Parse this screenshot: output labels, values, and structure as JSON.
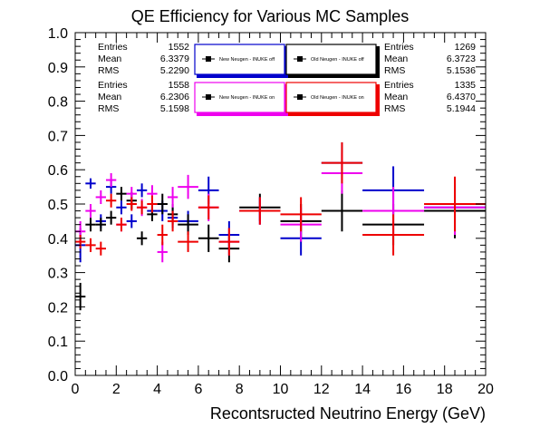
{
  "chart_data": {
    "type": "scatter",
    "title": "QE Efficiency for Various MC Samples",
    "xlabel": "Recontsructed Neutrino Energy (GeV)",
    "ylabel": "",
    "xlim": [
      0,
      20
    ],
    "ylim": [
      0,
      1
    ],
    "x_ticks": [
      "0",
      "2",
      "4",
      "6",
      "8",
      "10",
      "12",
      "14",
      "16",
      "18",
      "20"
    ],
    "y_ticks": [
      "0.0",
      "0.1",
      "0.2",
      "0.3",
      "0.4",
      "0.5",
      "0.6",
      "0.7",
      "0.8",
      "0.9",
      "1.0"
    ],
    "grid": false,
    "stat_boxes": [
      {
        "color": "#0000cc",
        "entries": "1552",
        "mean": "6.3379",
        "rms": "5.2290",
        "legend": "New Neugen - INUKE off"
      },
      {
        "color": "#000000",
        "entries": "1269",
        "mean": "6.3723",
        "rms": "5.1536",
        "legend": "Old Neugen - INUKE off"
      },
      {
        "color": "#ee00ee",
        "entries": "1558",
        "mean": "6.2306",
        "rms": "5.1598",
        "legend": "New Neugen - INUKE on"
      },
      {
        "color": "#ee0000",
        "entries": "1335",
        "mean": "6.4370",
        "rms": "5.1944",
        "legend": "Old Neugen - INUKE on"
      }
    ],
    "stat_labels": {
      "entries": "Entries",
      "mean": "Mean",
      "rms": "RMS"
    },
    "series": [
      {
        "color": "#0000cc",
        "points": [
          {
            "x": 0.25,
            "xerr": 0.25,
            "y": 0.38,
            "yerr": 0.05
          },
          {
            "x": 0.75,
            "xerr": 0.25,
            "y": 0.56,
            "yerr": 0.015
          },
          {
            "x": 1.25,
            "xerr": 0.25,
            "y": 0.45,
            "yerr": 0.02
          },
          {
            "x": 1.75,
            "xerr": 0.25,
            "y": 0.55,
            "yerr": 0.02
          },
          {
            "x": 2.25,
            "xerr": 0.25,
            "y": 0.49,
            "yerr": 0.02
          },
          {
            "x": 2.75,
            "xerr": 0.25,
            "y": 0.45,
            "yerr": 0.02
          },
          {
            "x": 3.25,
            "xerr": 0.25,
            "y": 0.54,
            "yerr": 0.02
          },
          {
            "x": 3.75,
            "xerr": 0.25,
            "y": 0.48,
            "yerr": 0.025
          },
          {
            "x": 4.25,
            "xerr": 0.25,
            "y": 0.48,
            "yerr": 0.03
          },
          {
            "x": 4.75,
            "xerr": 0.25,
            "y": 0.46,
            "yerr": 0.03
          },
          {
            "x": 5.5,
            "xerr": 0.5,
            "y": 0.45,
            "yerr": 0.03
          },
          {
            "x": 6.5,
            "xerr": 0.5,
            "y": 0.54,
            "yerr": 0.04
          },
          {
            "x": 7.5,
            "xerr": 0.5,
            "y": 0.41,
            "yerr": 0.04
          },
          {
            "x": 9.0,
            "xerr": 1.0,
            "y": 0.48,
            "yerr": 0.04
          },
          {
            "x": 11.0,
            "xerr": 1.0,
            "y": 0.4,
            "yerr": 0.05
          },
          {
            "x": 13.0,
            "xerr": 1.0,
            "y": 0.62,
            "yerr": 0.06
          },
          {
            "x": 15.5,
            "xerr": 1.5,
            "y": 0.54,
            "yerr": 0.07
          },
          {
            "x": 18.5,
            "xerr": 1.5,
            "y": 0.49,
            "yerr": 0.08
          }
        ]
      },
      {
        "color": "#000000",
        "points": [
          {
            "x": 0.25,
            "xerr": 0.25,
            "y": 0.23,
            "yerr": 0.04
          },
          {
            "x": 0.75,
            "xerr": 0.25,
            "y": 0.44,
            "yerr": 0.02
          },
          {
            "x": 1.25,
            "xerr": 0.25,
            "y": 0.44,
            "yerr": 0.02
          },
          {
            "x": 1.75,
            "xerr": 0.25,
            "y": 0.46,
            "yerr": 0.02
          },
          {
            "x": 2.25,
            "xerr": 0.25,
            "y": 0.53,
            "yerr": 0.02
          },
          {
            "x": 2.75,
            "xerr": 0.25,
            "y": 0.51,
            "yerr": 0.025
          },
          {
            "x": 3.25,
            "xerr": 0.25,
            "y": 0.4,
            "yerr": 0.02
          },
          {
            "x": 3.75,
            "xerr": 0.25,
            "y": 0.47,
            "yerr": 0.02
          },
          {
            "x": 4.25,
            "xerr": 0.25,
            "y": 0.5,
            "yerr": 0.03
          },
          {
            "x": 4.75,
            "xerr": 0.25,
            "y": 0.47,
            "yerr": 0.03
          },
          {
            "x": 5.5,
            "xerr": 0.5,
            "y": 0.44,
            "yerr": 0.03
          },
          {
            "x": 6.5,
            "xerr": 0.5,
            "y": 0.4,
            "yerr": 0.04
          },
          {
            "x": 7.5,
            "xerr": 0.5,
            "y": 0.37,
            "yerr": 0.04
          },
          {
            "x": 9.0,
            "xerr": 1.0,
            "y": 0.49,
            "yerr": 0.04
          },
          {
            "x": 11.0,
            "xerr": 1.0,
            "y": 0.45,
            "yerr": 0.05
          },
          {
            "x": 13.0,
            "xerr": 1.0,
            "y": 0.48,
            "yerr": 0.06
          },
          {
            "x": 15.5,
            "xerr": 1.5,
            "y": 0.44,
            "yerr": 0.06
          },
          {
            "x": 18.5,
            "xerr": 1.5,
            "y": 0.48,
            "yerr": 0.08
          }
        ]
      },
      {
        "color": "#ee00ee",
        "points": [
          {
            "x": 0.25,
            "xerr": 0.25,
            "y": 0.42,
            "yerr": 0.03
          },
          {
            "x": 0.75,
            "xerr": 0.25,
            "y": 0.48,
            "yerr": 0.02
          },
          {
            "x": 1.25,
            "xerr": 0.25,
            "y": 0.52,
            "yerr": 0.02
          },
          {
            "x": 1.75,
            "xerr": 0.25,
            "y": 0.57,
            "yerr": 0.02
          },
          {
            "x": 2.25,
            "xerr": 0.25,
            "y": 0.44,
            "yerr": 0.02
          },
          {
            "x": 2.75,
            "xerr": 0.25,
            "y": 0.53,
            "yerr": 0.02
          },
          {
            "x": 3.25,
            "xerr": 0.25,
            "y": 0.49,
            "yerr": 0.025
          },
          {
            "x": 3.75,
            "xerr": 0.25,
            "y": 0.53,
            "yerr": 0.025
          },
          {
            "x": 4.25,
            "xerr": 0.25,
            "y": 0.36,
            "yerr": 0.03
          },
          {
            "x": 4.75,
            "xerr": 0.25,
            "y": 0.52,
            "yerr": 0.03
          },
          {
            "x": 5.5,
            "xerr": 0.5,
            "y": 0.55,
            "yerr": 0.035
          },
          {
            "x": 6.5,
            "xerr": 0.5,
            "y": 0.49,
            "yerr": 0.04
          },
          {
            "x": 7.5,
            "xerr": 0.5,
            "y": 0.39,
            "yerr": 0.04
          },
          {
            "x": 9.0,
            "xerr": 1.0,
            "y": 0.48,
            "yerr": 0.04
          },
          {
            "x": 11.0,
            "xerr": 1.0,
            "y": 0.44,
            "yerr": 0.05
          },
          {
            "x": 13.0,
            "xerr": 1.0,
            "y": 0.59,
            "yerr": 0.06
          },
          {
            "x": 15.5,
            "xerr": 1.5,
            "y": 0.48,
            "yerr": 0.07
          },
          {
            "x": 18.5,
            "xerr": 1.5,
            "y": 0.49,
            "yerr": 0.08
          }
        ]
      },
      {
        "color": "#ee0000",
        "points": [
          {
            "x": 0.25,
            "xerr": 0.25,
            "y": 0.39,
            "yerr": 0.02
          },
          {
            "x": 0.75,
            "xerr": 0.25,
            "y": 0.38,
            "yerr": 0.02
          },
          {
            "x": 1.25,
            "xerr": 0.25,
            "y": 0.37,
            "yerr": 0.02
          },
          {
            "x": 1.75,
            "xerr": 0.25,
            "y": 0.51,
            "yerr": 0.02
          },
          {
            "x": 2.25,
            "xerr": 0.25,
            "y": 0.44,
            "yerr": 0.02
          },
          {
            "x": 2.75,
            "xerr": 0.25,
            "y": 0.5,
            "yerr": 0.02
          },
          {
            "x": 3.25,
            "xerr": 0.25,
            "y": 0.49,
            "yerr": 0.02
          },
          {
            "x": 3.75,
            "xerr": 0.25,
            "y": 0.5,
            "yerr": 0.025
          },
          {
            "x": 4.25,
            "xerr": 0.25,
            "y": 0.41,
            "yerr": 0.03
          },
          {
            "x": 4.75,
            "xerr": 0.25,
            "y": 0.45,
            "yerr": 0.03
          },
          {
            "x": 5.5,
            "xerr": 0.5,
            "y": 0.39,
            "yerr": 0.03
          },
          {
            "x": 6.5,
            "xerr": 0.5,
            "y": 0.49,
            "yerr": 0.035
          },
          {
            "x": 7.5,
            "xerr": 0.5,
            "y": 0.39,
            "yerr": 0.04
          },
          {
            "x": 9.0,
            "xerr": 1.0,
            "y": 0.48,
            "yerr": 0.04
          },
          {
            "x": 11.0,
            "xerr": 1.0,
            "y": 0.47,
            "yerr": 0.05
          },
          {
            "x": 13.0,
            "xerr": 1.0,
            "y": 0.62,
            "yerr": 0.06
          },
          {
            "x": 15.5,
            "xerr": 1.5,
            "y": 0.41,
            "yerr": 0.06
          },
          {
            "x": 18.5,
            "xerr": 1.5,
            "y": 0.5,
            "yerr": 0.08
          }
        ]
      }
    ]
  }
}
